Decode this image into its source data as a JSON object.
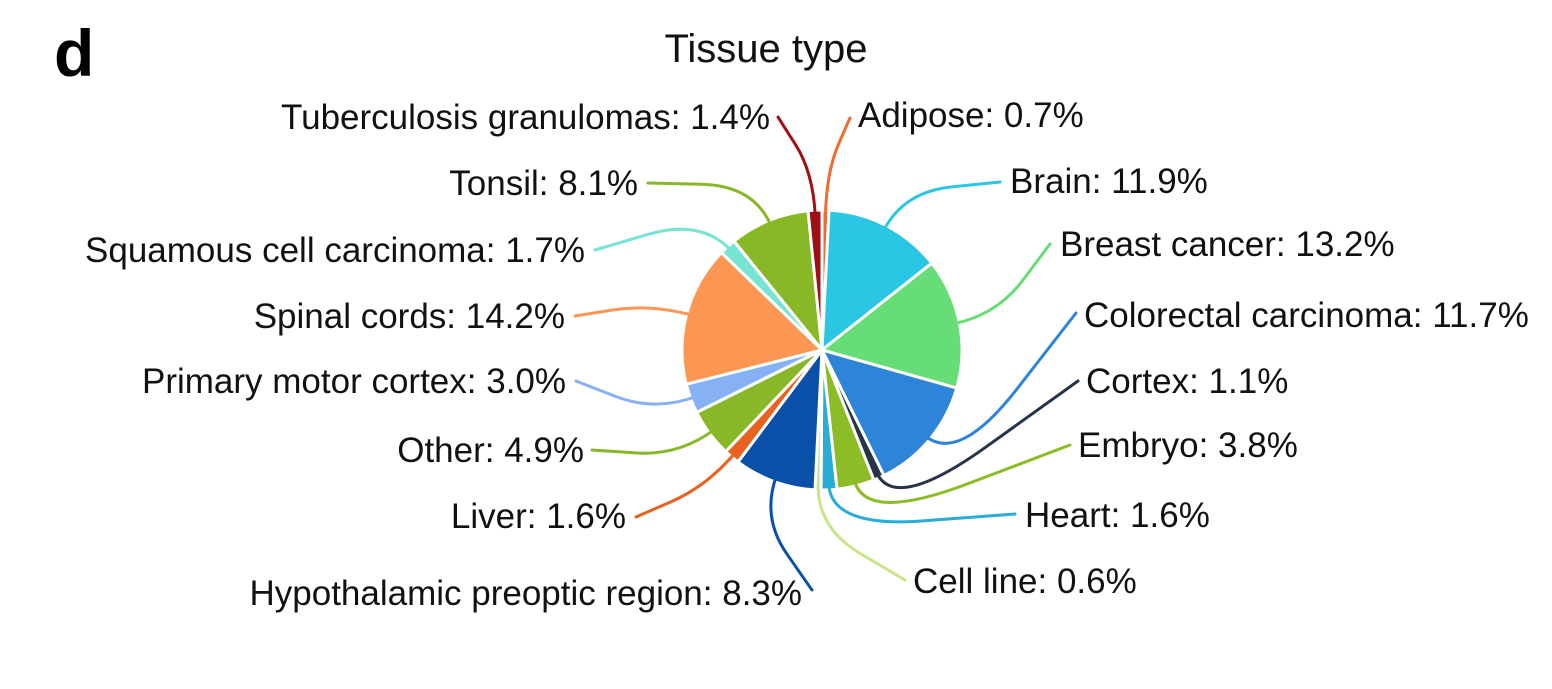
{
  "panel_letter": "d",
  "chart_data": {
    "type": "pie",
    "title": "Tissue type",
    "unit": "%",
    "slices": [
      {
        "label": "Adipose",
        "value": 0.7,
        "color": "#ef6c2f"
      },
      {
        "label": "Brain",
        "value": 11.9,
        "color": "#2ac6e3"
      },
      {
        "label": "Breast cancer",
        "value": 13.2,
        "color": "#66dd77"
      },
      {
        "label": "Colorectal carcinoma",
        "value": 11.7,
        "color": "#2e84d8"
      },
      {
        "label": "Cortex",
        "value": 1.1,
        "color": "#263448"
      },
      {
        "label": "Embryo",
        "value": 3.8,
        "color": "#8cbc26"
      },
      {
        "label": "Heart",
        "value": 1.6,
        "color": "#29acd6"
      },
      {
        "label": "Cell line",
        "value": 0.6,
        "color": "#c9e58a"
      },
      {
        "label": "Hypothalamic preoptic region",
        "value": 8.3,
        "color": "#0a50a9"
      },
      {
        "label": "Liver",
        "value": 1.6,
        "color": "#e8611f"
      },
      {
        "label": "Other",
        "value": 4.9,
        "color": "#88b828"
      },
      {
        "label": "Primary motor cortex",
        "value": 3.0,
        "color": "#86b2f5"
      },
      {
        "label": "Spinal cords",
        "value": 14.2,
        "color": "#fb9653"
      },
      {
        "label": "Squamous cell carcinoma",
        "value": 1.7,
        "color": "#78e4d4"
      },
      {
        "label": "Tonsil",
        "value": 8.1,
        "color": "#88b825"
      },
      {
        "label": "Tuberculosis granulomas",
        "value": 1.4,
        "color": "#a00f16"
      }
    ]
  }
}
